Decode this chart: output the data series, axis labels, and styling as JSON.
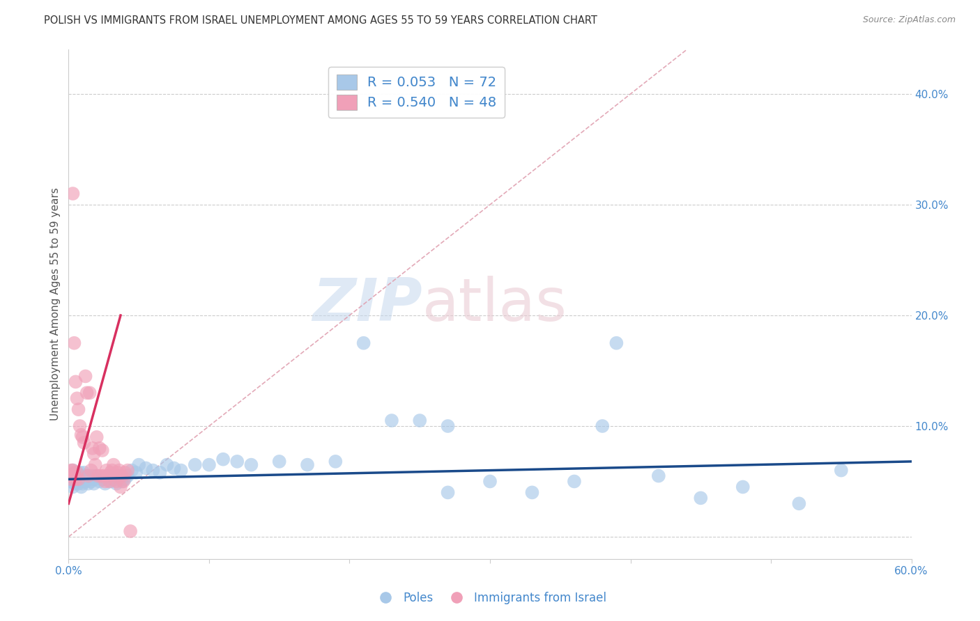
{
  "title": "POLISH VS IMMIGRANTS FROM ISRAEL UNEMPLOYMENT AMONG AGES 55 TO 59 YEARS CORRELATION CHART",
  "source": "Source: ZipAtlas.com",
  "ylabel": "Unemployment Among Ages 55 to 59 years",
  "xlim": [
    0.0,
    0.6
  ],
  "ylim": [
    -0.02,
    0.44
  ],
  "xticks": [
    0.0,
    0.1,
    0.2,
    0.3,
    0.4,
    0.5,
    0.6
  ],
  "yticks": [
    0.0,
    0.1,
    0.2,
    0.3,
    0.4
  ],
  "xticklabels": [
    "0.0%",
    "",
    "",
    "",
    "",
    "",
    "60.0%"
  ],
  "yticklabels": [
    "",
    "10.0%",
    "20.0%",
    "30.0%",
    "40.0%"
  ],
  "blue_color": "#a8c8e8",
  "blue_line_color": "#1a4a8a",
  "pink_color": "#f0a0b8",
  "pink_line_color": "#d83060",
  "pink_dash_color": "#e0a0b0",
  "legend_R_blue": "R = 0.053",
  "legend_N_blue": "N = 72",
  "legend_R_pink": "R = 0.540",
  "legend_N_pink": "N = 48",
  "watermark_zip": "ZIP",
  "watermark_atlas": "atlas",
  "poles_x": [
    0.001,
    0.002,
    0.003,
    0.003,
    0.004,
    0.004,
    0.005,
    0.005,
    0.006,
    0.006,
    0.007,
    0.007,
    0.008,
    0.008,
    0.009,
    0.009,
    0.01,
    0.01,
    0.011,
    0.011,
    0.012,
    0.013,
    0.014,
    0.015,
    0.016,
    0.017,
    0.018,
    0.019,
    0.02,
    0.022,
    0.024,
    0.026,
    0.028,
    0.03,
    0.032,
    0.034,
    0.036,
    0.038,
    0.04,
    0.042,
    0.045,
    0.048,
    0.05,
    0.055,
    0.06,
    0.065,
    0.07,
    0.075,
    0.08,
    0.09,
    0.1,
    0.11,
    0.12,
    0.13,
    0.15,
    0.17,
    0.19,
    0.21,
    0.23,
    0.25,
    0.27,
    0.3,
    0.33,
    0.36,
    0.39,
    0.42,
    0.45,
    0.48,
    0.52,
    0.55,
    0.27,
    0.38
  ],
  "poles_y": [
    0.055,
    0.05,
    0.06,
    0.045,
    0.055,
    0.048,
    0.052,
    0.058,
    0.05,
    0.053,
    0.048,
    0.055,
    0.052,
    0.058,
    0.05,
    0.045,
    0.055,
    0.048,
    0.052,
    0.058,
    0.05,
    0.055,
    0.048,
    0.052,
    0.05,
    0.055,
    0.048,
    0.052,
    0.055,
    0.05,
    0.052,
    0.048,
    0.055,
    0.05,
    0.052,
    0.048,
    0.055,
    0.05,
    0.052,
    0.055,
    0.06,
    0.058,
    0.065,
    0.062,
    0.06,
    0.058,
    0.065,
    0.062,
    0.06,
    0.065,
    0.065,
    0.07,
    0.068,
    0.065,
    0.068,
    0.065,
    0.068,
    0.175,
    0.105,
    0.105,
    0.04,
    0.05,
    0.04,
    0.05,
    0.175,
    0.055,
    0.035,
    0.045,
    0.03,
    0.06,
    0.1,
    0.1
  ],
  "israel_x": [
    0.001,
    0.002,
    0.002,
    0.003,
    0.003,
    0.004,
    0.004,
    0.005,
    0.005,
    0.006,
    0.006,
    0.007,
    0.007,
    0.008,
    0.009,
    0.01,
    0.011,
    0.012,
    0.013,
    0.014,
    0.015,
    0.016,
    0.017,
    0.018,
    0.019,
    0.02,
    0.021,
    0.022,
    0.023,
    0.024,
    0.025,
    0.026,
    0.027,
    0.028,
    0.029,
    0.03,
    0.031,
    0.032,
    0.033,
    0.034,
    0.035,
    0.036,
    0.037,
    0.038,
    0.039,
    0.04,
    0.042,
    0.044
  ],
  "israel_y": [
    0.055,
    0.06,
    0.052,
    0.31,
    0.06,
    0.175,
    0.058,
    0.14,
    0.052,
    0.125,
    0.058,
    0.115,
    0.052,
    0.1,
    0.092,
    0.09,
    0.085,
    0.145,
    0.13,
    0.055,
    0.13,
    0.06,
    0.08,
    0.075,
    0.065,
    0.09,
    0.055,
    0.08,
    0.055,
    0.078,
    0.055,
    0.05,
    0.06,
    0.055,
    0.05,
    0.058,
    0.06,
    0.065,
    0.055,
    0.05,
    0.058,
    0.06,
    0.045,
    0.055,
    0.05,
    0.058,
    0.06,
    0.005
  ],
  "blue_line_x0": 0.0,
  "blue_line_x1": 0.6,
  "blue_line_y0": 0.052,
  "blue_line_y1": 0.068,
  "pink_line_x0": 0.0,
  "pink_line_x1": 0.037,
  "pink_line_y0": 0.03,
  "pink_line_y1": 0.2,
  "dash_line_x0": 0.0,
  "dash_line_x1": 0.44,
  "dash_line_y0": 0.0,
  "dash_line_y1": 0.44
}
